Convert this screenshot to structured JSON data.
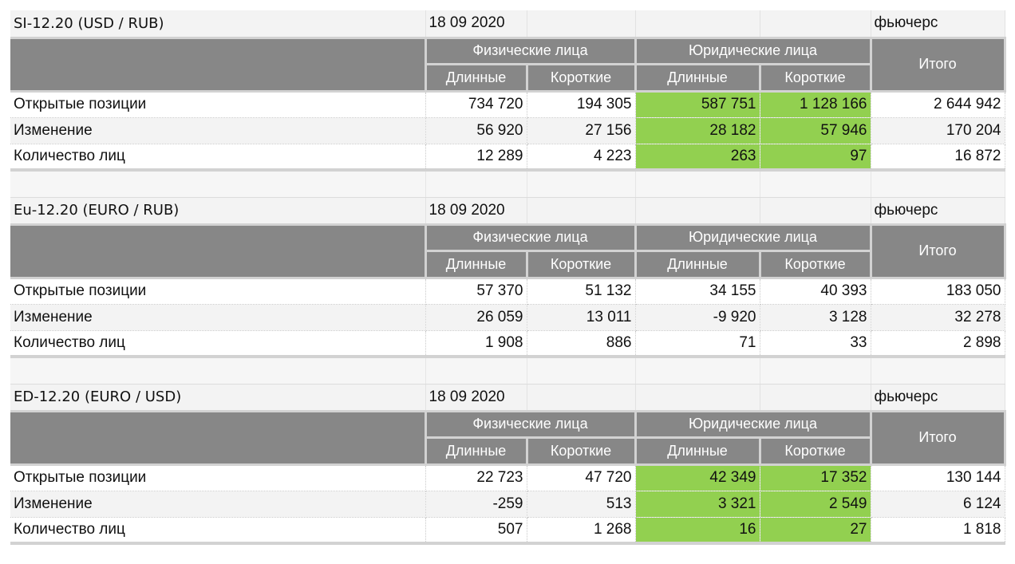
{
  "headers": {
    "phys": "Физические лица",
    "jur": "Юридические лица",
    "long": "Длинные",
    "short": "Короткие",
    "total": "Итого"
  },
  "type_label": "фьючерс",
  "highlight_color": "#92d050",
  "header_color": "#878787",
  "row_labels": [
    "Открытые позиции",
    "Изменение",
    "Количество лиц"
  ],
  "tables": [
    {
      "title": "SI-12.20 (USD / RUB)",
      "date": "18 09 2020",
      "rows": [
        {
          "values": [
            "734 720",
            "194 305",
            "587 751",
            "1 128 166",
            "2 644 942"
          ]
        },
        {
          "values": [
            "56 920",
            "27 156",
            "28 182",
            "57 946",
            "170 204"
          ]
        },
        {
          "values": [
            "12 289",
            "4 223",
            "263",
            "97",
            "16 872"
          ]
        }
      ]
    },
    {
      "title": "Eu-12.20 (EURO / RUB)",
      "date": "18 09 2020",
      "rows": [
        {
          "values": [
            "57 370",
            "51 132",
            "34 155",
            "40 393",
            "183 050"
          ]
        },
        {
          "values": [
            "26 059",
            "13 011",
            "-9 920",
            "3 128",
            "32 278"
          ]
        },
        {
          "values": [
            "1 908",
            "886",
            "71",
            "33",
            "2 898"
          ]
        }
      ]
    },
    {
      "title": "ED-12.20 (EURO / USD)",
      "date": "18 09 2020",
      "rows": [
        {
          "values": [
            "22 723",
            "47 720",
            "42 349",
            "17 352",
            "130 144"
          ]
        },
        {
          "values": [
            "-259",
            "513",
            "3 321",
            "2 549",
            "6 124"
          ]
        },
        {
          "values": [
            "507",
            "1 268",
            "16",
            "27",
            "1 818"
          ]
        }
      ]
    }
  ]
}
